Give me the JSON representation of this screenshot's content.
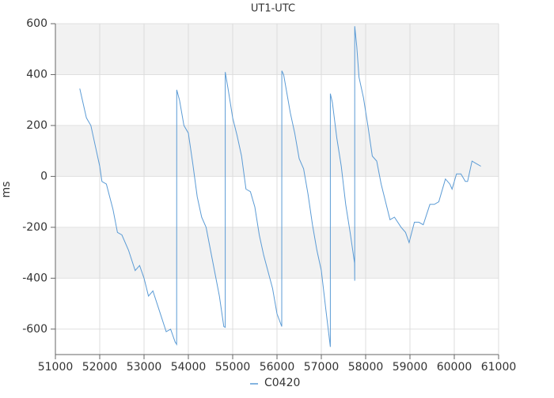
{
  "chart_data": {
    "type": "line",
    "title": "UT1-UTC",
    "y_label": "ms",
    "x": [
      51550,
      51700,
      51800,
      51900,
      52000,
      52050,
      52150,
      52300,
      52400,
      52500,
      52650,
      52800,
      52900,
      53000,
      53100,
      53200,
      53350,
      53500,
      53600,
      53700,
      53736,
      53737,
      53800,
      53900,
      54000,
      54100,
      54200,
      54300,
      54400,
      54500,
      54600,
      54700,
      54800,
      54832,
      54833,
      54900,
      55000,
      55100,
      55200,
      55300,
      55400,
      55500,
      55600,
      55700,
      55900,
      56000,
      56108,
      56109,
      56150,
      56300,
      56400,
      56500,
      56600,
      56700,
      56800,
      56900,
      57000,
      57100,
      57203,
      57204,
      57250,
      57350,
      57450,
      57550,
      57650,
      57750,
      57753,
      57754,
      57800,
      57850,
      57950,
      58050,
      58150,
      58250,
      58350,
      58450,
      58550,
      58650,
      58800,
      58900,
      58980,
      59100,
      59200,
      59300,
      59450,
      59550,
      59650,
      59750,
      59800,
      59900,
      59950,
      60050,
      60150,
      60250,
      60300,
      60400,
      60500,
      60600
    ],
    "series": [
      {
        "name": "C0420",
        "color": "#5b9bd5",
        "values": [
          345,
          230,
          200,
          120,
          40,
          -20,
          -30,
          -130,
          -220,
          -230,
          -290,
          -370,
          -350,
          -400,
          -470,
          -450,
          -530,
          -610,
          -600,
          -650,
          -660,
          340,
          300,
          200,
          170,
          50,
          -80,
          -160,
          -200,
          -290,
          -380,
          -470,
          -590,
          -593,
          410,
          340,
          230,
          160,
          80,
          -50,
          -60,
          -120,
          -230,
          -310,
          -440,
          -540,
          -590,
          415,
          400,
          250,
          170,
          70,
          30,
          -70,
          -190,
          -290,
          -370,
          -520,
          -670,
          325,
          290,
          150,
          40,
          -110,
          -220,
          -340,
          -410,
          590,
          510,
          390,
          310,
          200,
          80,
          60,
          -30,
          -100,
          -170,
          -160,
          -200,
          -220,
          -260,
          -180,
          -180,
          -190,
          -110,
          -110,
          -100,
          -40,
          -10,
          -30,
          -50,
          10,
          10,
          -20,
          -20,
          60,
          50,
          40
        ]
      }
    ],
    "xlim": [
      51000,
      61000
    ],
    "xticks": [
      51000,
      52000,
      53000,
      54000,
      55000,
      56000,
      57000,
      58000,
      59000,
      60000,
      61000
    ],
    "ylim": [
      -700,
      600
    ],
    "yticks": [
      -600,
      -400,
      -200,
      0,
      200,
      400,
      600
    ],
    "grid": true,
    "legend": "bottom"
  }
}
